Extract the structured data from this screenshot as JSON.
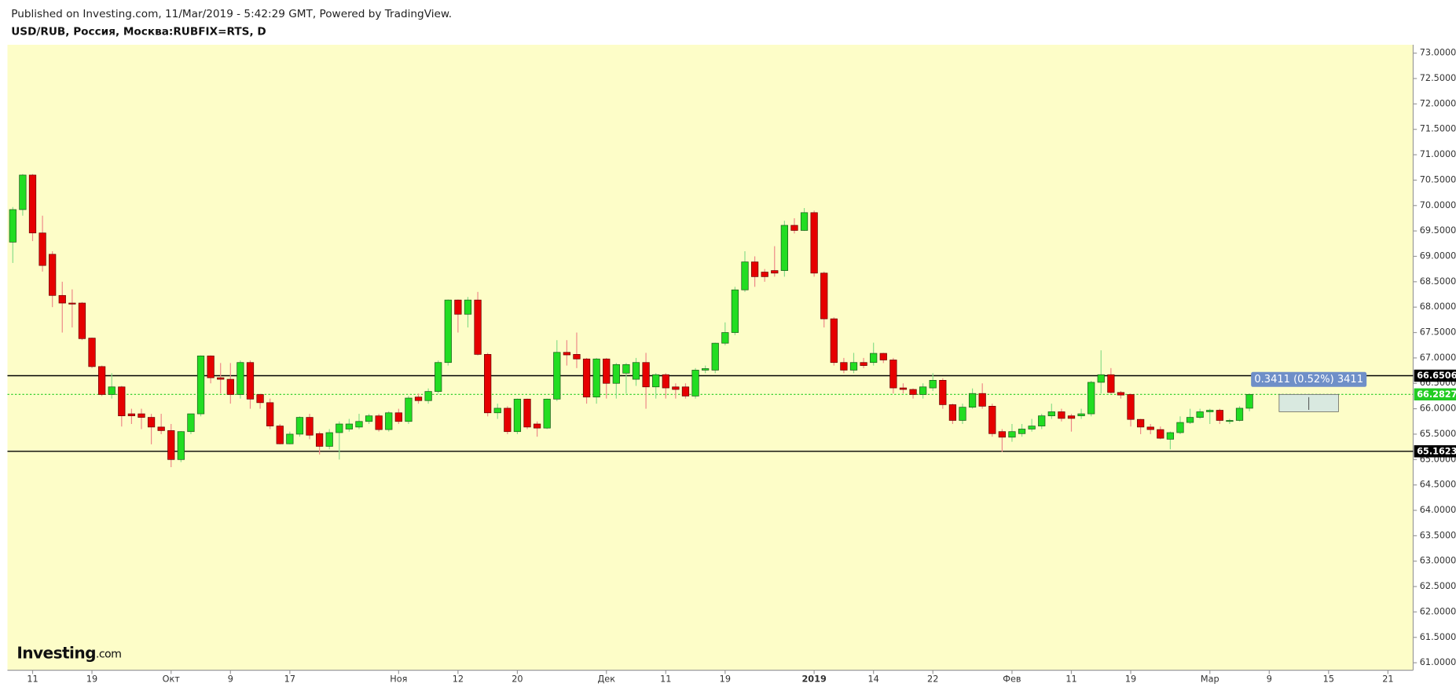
{
  "chart_data": {
    "type": "candlestick",
    "source_note": "Published on Investing.com, 11/Mar/2019 - 5:42:29 GMT, Powered by TradingView.",
    "title": "USD/RUB, Россия, Москва:RUBFIX=RTS, D",
    "logo": "Investing",
    "logo_suffix": ".com",
    "up_color": "#22dd22",
    "down_color": "#e60000",
    "up_wick_color": "#88dd88",
    "down_wick_color": "#ee8888",
    "categories": [
      null,
      null,
      "11",
      null,
      null,
      null,
      null,
      null,
      "19",
      null,
      null,
      null,
      null,
      null,
      null,
      null,
      "Окт",
      null,
      null,
      null,
      null,
      null,
      "9",
      null,
      null,
      null,
      null,
      null,
      "17",
      null,
      null,
      null,
      null,
      null,
      null,
      null,
      null,
      null,
      null,
      "Ноя",
      null,
      null,
      null,
      null,
      null,
      "12",
      null,
      null,
      null,
      null,
      null,
      "20",
      null,
      null,
      null,
      null,
      null,
      null,
      null,
      null,
      "Дек",
      null,
      null,
      null,
      null,
      null,
      "11",
      null,
      null,
      null,
      null,
      null,
      "19",
      null,
      null,
      null,
      null,
      null,
      null,
      null,
      null,
      "2019",
      null,
      null,
      null,
      null,
      null,
      "14",
      null,
      null,
      null,
      null,
      null,
      "22",
      null,
      null,
      null,
      null,
      null,
      null,
      null,
      "Фев",
      null,
      null,
      null,
      null,
      null,
      "11",
      null,
      null,
      null,
      null,
      null,
      "19",
      null,
      null,
      null,
      null,
      null,
      null,
      null,
      "Мар",
      null,
      null,
      null,
      null,
      null,
      "9",
      null,
      null,
      null,
      null,
      null,
      "15",
      null,
      null,
      null,
      null,
      null,
      "21"
    ],
    "open": [
      69.28,
      69.92,
      70.6,
      69.46,
      69.04,
      68.23,
      68.08,
      68.08,
      67.39,
      66.83,
      66.28,
      66.43,
      65.9,
      65.9,
      65.83,
      65.64,
      65.57,
      65.0,
      65.55,
      65.9,
      67.04,
      66.61,
      66.58,
      66.28,
      66.91,
      66.28,
      66.12,
      65.66,
      65.31,
      65.5,
      65.83,
      65.51,
      65.26,
      65.53,
      65.6,
      65.64,
      65.75,
      65.86,
      65.59,
      65.92,
      65.75,
      66.23,
      66.16,
      66.34,
      66.91,
      68.14,
      67.86,
      68.14,
      67.07,
      65.92,
      66.01,
      65.55,
      66.19,
      65.7,
      65.62,
      66.19,
      67.11,
      67.07,
      66.98,
      66.23,
      66.98,
      66.5,
      66.7,
      66.58,
      66.91,
      66.43,
      66.67,
      66.43,
      66.43,
      66.25,
      66.76,
      66.76,
      67.29,
      67.5,
      68.34,
      68.89,
      68.69,
      68.72,
      68.72,
      69.61,
      69.51,
      69.86,
      68.67,
      67.77,
      66.91,
      66.76,
      66.91,
      66.91,
      67.09,
      66.96,
      66.41,
      66.38,
      66.28,
      66.41,
      66.56,
      66.08,
      65.77,
      66.03,
      66.3,
      66.05,
      65.55,
      65.44,
      65.51,
      65.6,
      65.66,
      65.86,
      65.94,
      65.86,
      65.86,
      65.9,
      66.52,
      66.67,
      66.32,
      66.28,
      65.79,
      65.64,
      65.59,
      65.4,
      65.53,
      65.73,
      65.83,
      65.94,
      65.97,
      65.75,
      65.77,
      66.01,
      null,
      null,
      null,
      null,
      null,
      null,
      null,
      null,
      null,
      null,
      null,
      null,
      null,
      null
    ],
    "high": [
      69.97,
      70.62,
      70.62,
      69.8,
      69.1,
      68.5,
      68.35,
      68.1,
      67.4,
      66.85,
      66.7,
      66.45,
      66.0,
      66.0,
      65.9,
      65.9,
      65.7,
      65.56,
      65.9,
      67.05,
      67.05,
      66.9,
      66.9,
      66.95,
      66.95,
      66.3,
      66.2,
      65.7,
      65.55,
      65.85,
      65.9,
      65.55,
      65.6,
      65.75,
      65.8,
      65.9,
      65.9,
      65.9,
      65.95,
      66.0,
      66.25,
      66.3,
      66.4,
      66.95,
      68.15,
      68.15,
      68.2,
      68.3,
      67.1,
      66.1,
      66.05,
      66.2,
      66.2,
      65.75,
      66.2,
      67.35,
      67.35,
      67.5,
      67.0,
      67.0,
      67.0,
      66.9,
      66.9,
      67.0,
      67.1,
      66.7,
      66.7,
      66.5,
      66.5,
      66.8,
      66.85,
      67.3,
      67.7,
      68.4,
      69.1,
      69.0,
      68.75,
      69.2,
      69.7,
      69.75,
      69.95,
      69.9,
      68.7,
      67.8,
      67.0,
      67.1,
      67.0,
      67.3,
      67.1,
      67.0,
      66.5,
      66.4,
      66.5,
      66.7,
      66.6,
      66.1,
      66.1,
      66.4,
      66.5,
      66.1,
      65.6,
      65.7,
      65.7,
      65.8,
      65.9,
      66.1,
      66.0,
      65.9,
      66.0,
      66.55,
      67.15,
      66.8,
      66.35,
      66.3,
      65.8,
      65.7,
      65.65,
      65.55,
      65.85,
      66.0,
      66.0,
      66.0,
      66.0,
      65.8,
      66.05,
      66.3,
      null,
      null,
      null,
      null,
      null,
      null,
      null,
      null,
      null,
      null,
      null,
      null,
      null,
      null
    ],
    "low": [
      68.87,
      69.8,
      69.3,
      68.7,
      68.0,
      67.5,
      67.6,
      67.35,
      66.8,
      66.25,
      66.2,
      65.65,
      65.7,
      65.6,
      65.3,
      65.5,
      64.85,
      64.95,
      65.5,
      65.85,
      66.5,
      66.3,
      66.1,
      66.2,
      66.0,
      66.0,
      65.6,
      65.3,
      65.3,
      65.45,
      65.4,
      65.1,
      65.2,
      65.0,
      65.55,
      65.6,
      65.7,
      65.55,
      65.55,
      65.7,
      65.7,
      66.1,
      66.1,
      66.3,
      66.85,
      67.5,
      67.6,
      67.05,
      65.85,
      65.8,
      65.5,
      65.5,
      65.6,
      65.45,
      65.6,
      66.15,
      66.85,
      66.8,
      66.1,
      66.1,
      66.2,
      66.2,
      66.3,
      66.45,
      66.0,
      66.2,
      66.2,
      66.2,
      66.2,
      66.2,
      66.7,
      66.7,
      67.25,
      67.45,
      68.3,
      68.4,
      68.5,
      68.6,
      68.6,
      69.45,
      69.5,
      68.6,
      67.6,
      66.85,
      66.7,
      66.7,
      66.8,
      66.85,
      66.9,
      66.3,
      66.3,
      66.2,
      66.2,
      66.35,
      66.0,
      65.7,
      65.7,
      66.0,
      66.0,
      65.45,
      65.15,
      65.35,
      65.45,
      65.55,
      65.6,
      65.8,
      65.75,
      65.55,
      65.8,
      65.85,
      66.3,
      66.3,
      66.2,
      65.65,
      65.5,
      65.5,
      65.4,
      65.2,
      65.5,
      65.7,
      65.8,
      65.7,
      65.7,
      65.7,
      65.75,
      65.95,
      null,
      null,
      null,
      null,
      null,
      null,
      null,
      null,
      null,
      null,
      null,
      null,
      null,
      null
    ],
    "close": [
      69.92,
      70.6,
      69.46,
      68.82,
      68.23,
      68.08,
      68.06,
      67.38,
      66.83,
      66.28,
      66.43,
      65.86,
      65.86,
      65.83,
      65.64,
      65.57,
      65.0,
      65.55,
      65.9,
      67.04,
      66.61,
      66.58,
      66.28,
      66.91,
      66.19,
      66.12,
      65.66,
      65.31,
      65.5,
      65.83,
      65.48,
      65.26,
      65.53,
      65.7,
      65.7,
      65.75,
      65.86,
      65.59,
      65.92,
      65.75,
      66.21,
      66.16,
      66.34,
      66.91,
      68.14,
      67.86,
      68.14,
      67.07,
      65.92,
      66.01,
      65.55,
      66.19,
      65.64,
      65.62,
      66.19,
      67.11,
      67.06,
      66.98,
      66.23,
      66.98,
      66.5,
      66.87,
      66.87,
      66.91,
      66.43,
      66.67,
      66.41,
      66.38,
      66.25,
      66.76,
      66.79,
      67.29,
      67.5,
      68.34,
      68.89,
      68.6,
      68.6,
      68.67,
      69.61,
      69.51,
      69.86,
      68.67,
      67.77,
      66.91,
      66.76,
      66.91,
      66.85,
      67.09,
      66.96,
      66.41,
      66.38,
      66.28,
      66.43,
      66.56,
      66.08,
      65.77,
      66.03,
      66.3,
      66.05,
      65.51,
      65.44,
      65.55,
      65.6,
      65.66,
      65.86,
      65.94,
      65.81,
      65.81,
      65.9,
      66.52,
      66.67,
      66.32,
      66.27,
      65.79,
      65.64,
      65.59,
      65.42,
      65.53,
      65.73,
      65.83,
      65.94,
      65.97,
      65.77,
      65.77,
      66.01,
      66.2827,
      null,
      null,
      null,
      null,
      null,
      null,
      null,
      null,
      null,
      null,
      null,
      null,
      null,
      null
    ],
    "ylim": [
      60.853,
      73.165
    ],
    "yticks": [
      {
        "value": 61,
        "label": "61.0000"
      },
      {
        "value": 61.5,
        "label": "61.5000"
      },
      {
        "value": 62,
        "label": "62.0000"
      },
      {
        "value": 62.5,
        "label": "62.5000"
      },
      {
        "value": 63,
        "label": "63.0000"
      },
      {
        "value": 63.5,
        "label": "63.5000"
      },
      {
        "value": 64,
        "label": "64.0000"
      },
      {
        "value": 64.5,
        "label": "64.5000"
      },
      {
        "value": 65,
        "label": "65.0000"
      },
      {
        "value": 65.5,
        "label": "65.5000"
      },
      {
        "value": 66,
        "label": "66.0000"
      },
      {
        "value": 66.5,
        "label": "66.5000"
      },
      {
        "value": 67,
        "label": "67.0000"
      },
      {
        "value": 67.5,
        "label": "67.5000"
      },
      {
        "value": 68,
        "label": "68.0000"
      },
      {
        "value": 68.5,
        "label": "68.5000"
      },
      {
        "value": 69,
        "label": "69.0000"
      },
      {
        "value": 69.5,
        "label": "69.5000"
      },
      {
        "value": 70,
        "label": "70.0000"
      },
      {
        "value": 70.5,
        "label": "70.5000"
      },
      {
        "value": 71,
        "label": "71.0000"
      },
      {
        "value": 71.5,
        "label": "71.5000"
      },
      {
        "value": 72,
        "label": "72.0000"
      },
      {
        "value": 72.5,
        "label": "72.5000"
      },
      {
        "value": 73,
        "label": "73.0000"
      }
    ],
    "hlines": [
      66.6506,
      65.1623
    ],
    "hline_color": "#000000",
    "last_price": 66.2827,
    "last_price_color": "#22cc22",
    "measure": {
      "label": "0.3411 (0.52%) 3411",
      "from": 65.9416,
      "to": 66.2827,
      "color": "#6f8fc8"
    }
  }
}
